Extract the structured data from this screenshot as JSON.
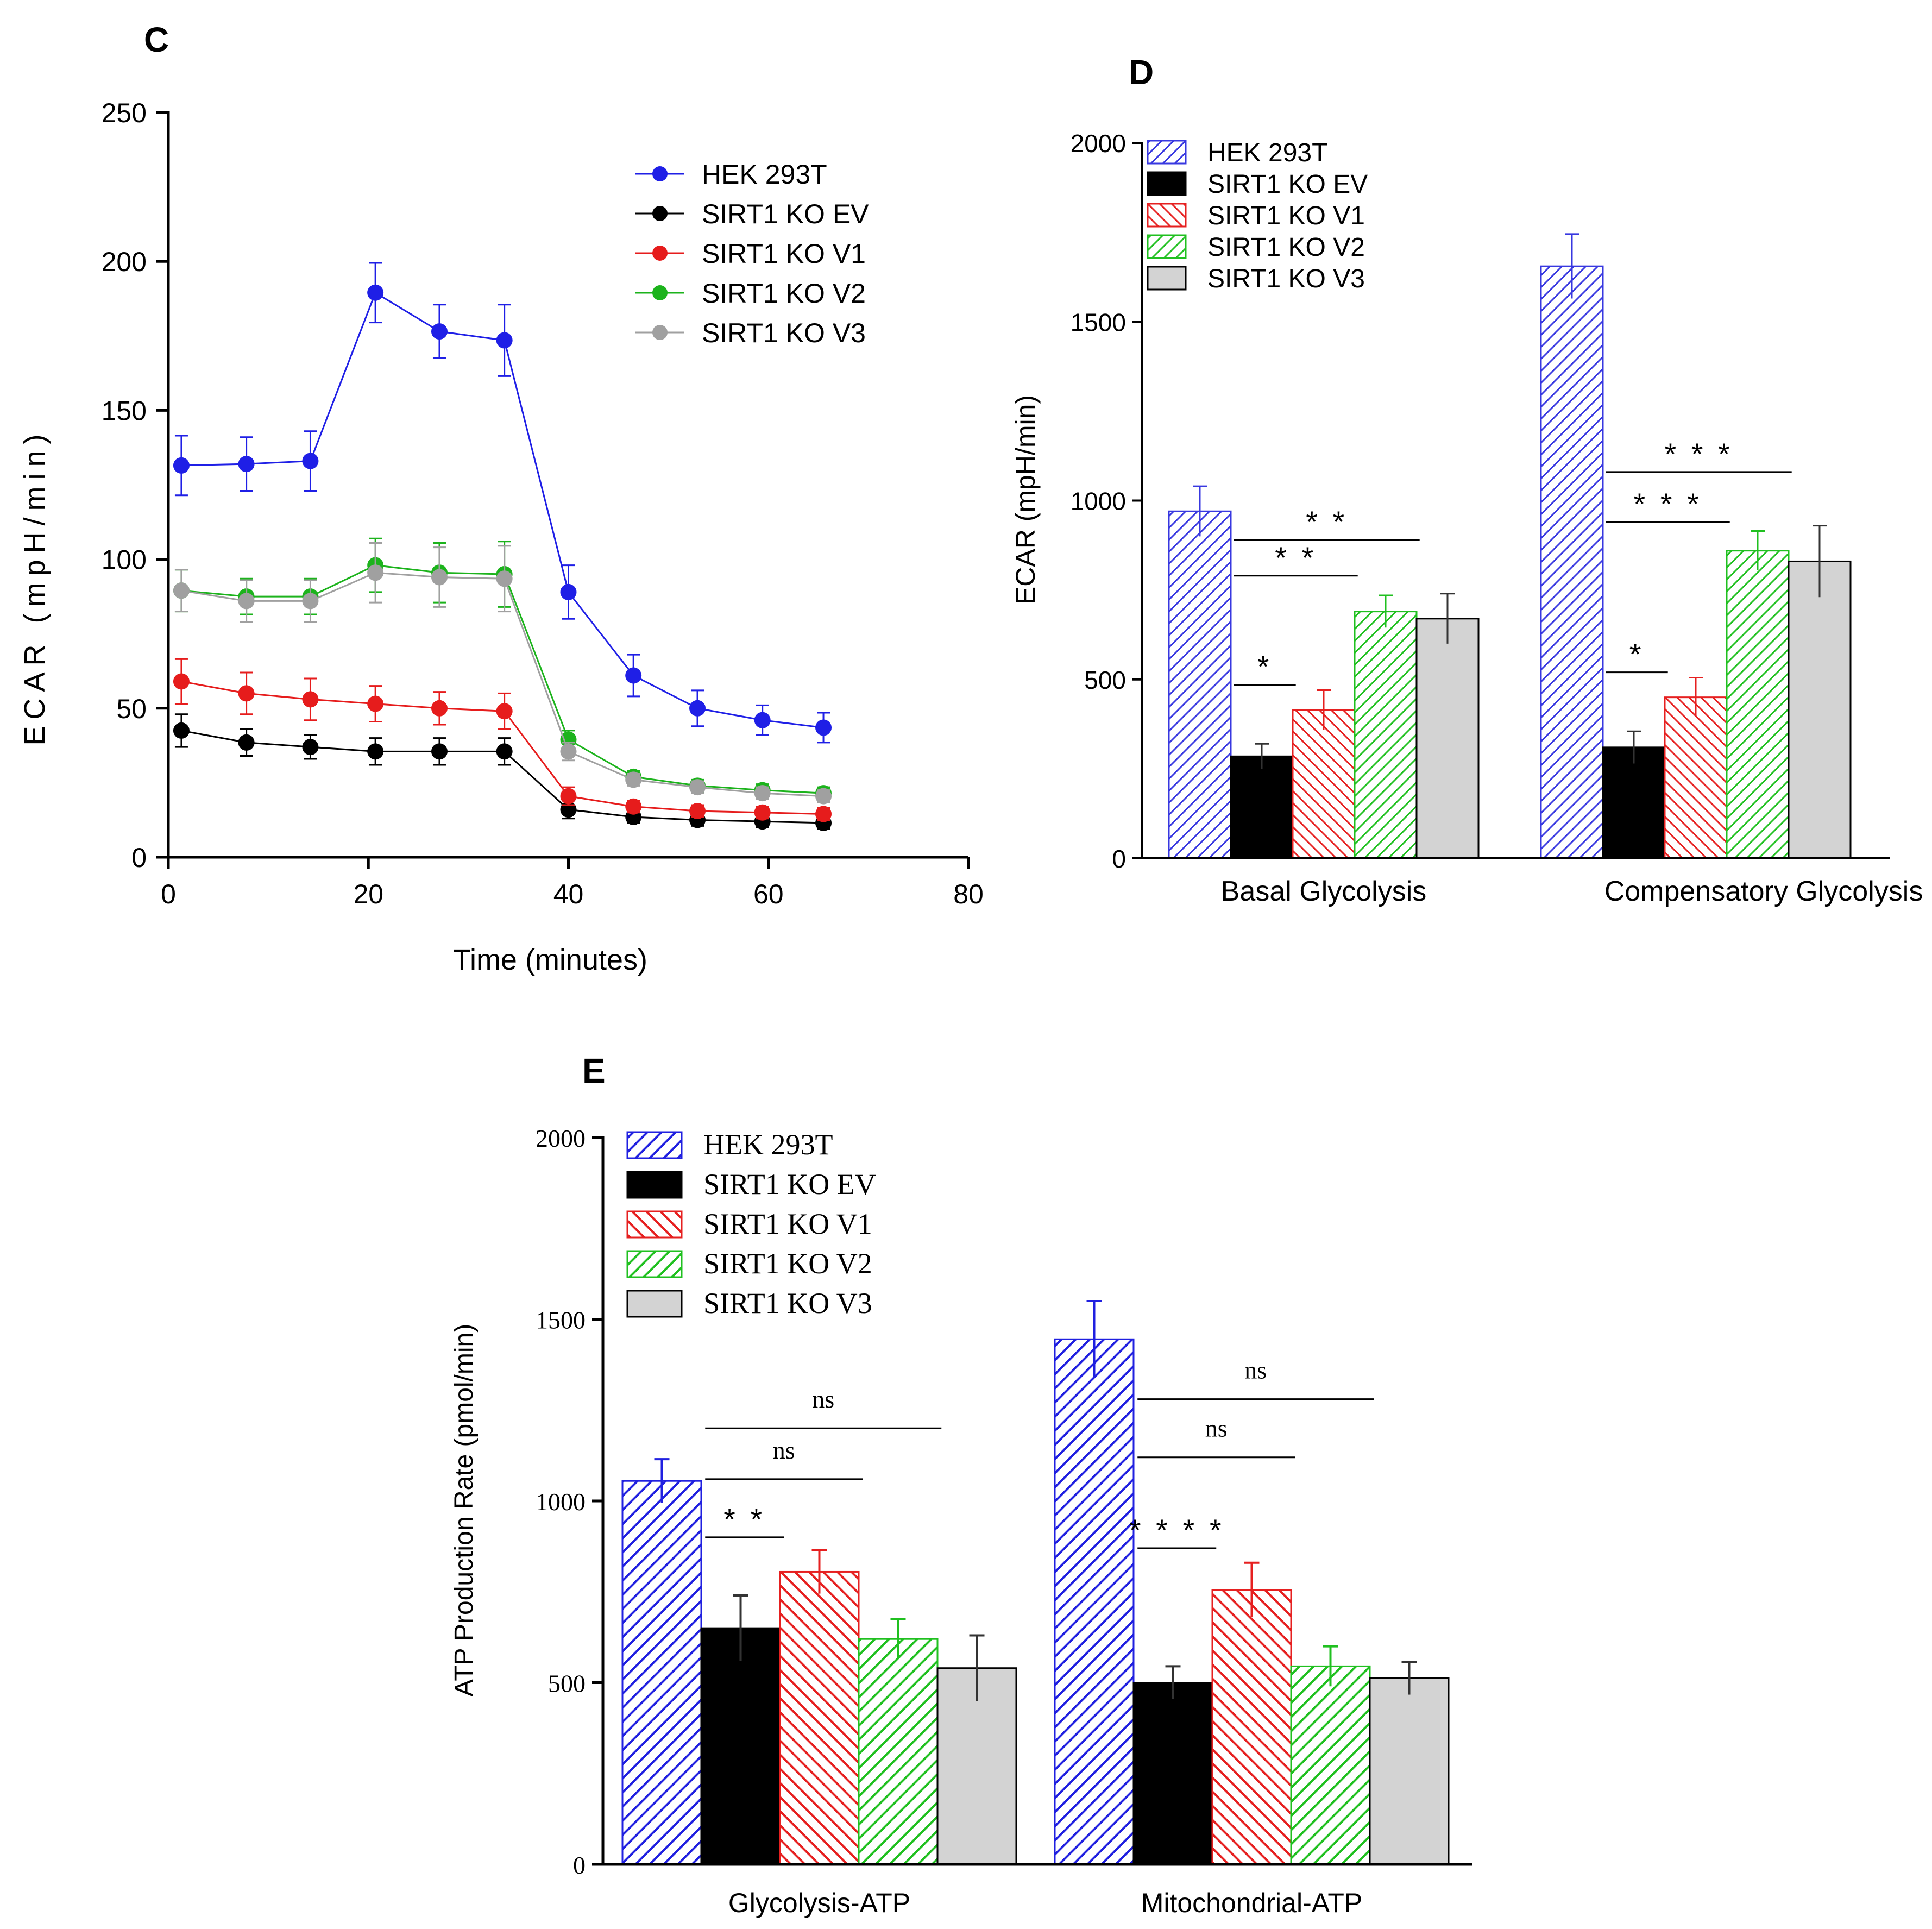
{
  "panels": {
    "c": {
      "label": "C"
    },
    "d": {
      "label": "D"
    },
    "e": {
      "label": "E"
    }
  },
  "chart_data": [
    {
      "id": "c",
      "type": "line",
      "title": "",
      "xlabel": "Time (minutes)",
      "ylabel": "ECAR (mpH/min)",
      "xlim": [
        0,
        80
      ],
      "ylim": [
        0,
        250
      ],
      "x_ticks": [
        "0",
        "20",
        "40",
        "60",
        "80"
      ],
      "y_ticks": [
        "0",
        "50",
        "100",
        "150",
        "200",
        "250"
      ],
      "legend": "top-right",
      "x": [
        1.3,
        7.8,
        14.2,
        20.7,
        27.1,
        33.6,
        40.0,
        46.5,
        52.9,
        59.4,
        65.5
      ],
      "series": [
        {
          "name": "HEK 293T",
          "color": "#1f1fe6",
          "values": [
            131.5,
            132,
            133,
            189.5,
            176.5,
            173.5,
            89,
            61,
            50,
            46,
            43.5
          ],
          "errors": [
            10,
            9,
            10,
            10,
            9,
            12,
            9,
            7,
            6,
            5,
            5
          ]
        },
        {
          "name": "SIRT1 KO EV",
          "color": "#000000",
          "values": [
            42.5,
            38.5,
            37,
            35.5,
            35.5,
            35.5,
            16,
            13.5,
            12.5,
            12,
            11.5
          ],
          "errors": [
            5.5,
            4.5,
            4,
            4.5,
            4.5,
            4.5,
            3,
            2,
            2,
            2,
            2
          ]
        },
        {
          "name": "SIRT1 KO V1",
          "color": "#e61c1c",
          "values": [
            59,
            55,
            53,
            51.5,
            50,
            49,
            20.5,
            17,
            15.5,
            15,
            14.5
          ],
          "errors": [
            7.5,
            7,
            7,
            6,
            5.5,
            6,
            3,
            2,
            2,
            2,
            2
          ]
        },
        {
          "name": "SIRT1 KO V2",
          "color": "#1cb31c",
          "values": [
            89.5,
            87.5,
            87.5,
            98,
            95.5,
            95,
            39.5,
            27,
            24,
            22.5,
            21.5
          ],
          "errors": [
            7,
            6,
            6,
            9,
            10,
            11,
            3,
            2,
            2,
            2,
            2
          ]
        },
        {
          "name": "SIRT1 KO V3",
          "color": "#a0a0a0",
          "values": [
            89.5,
            86,
            86,
            95.5,
            94,
            93.5,
            35.5,
            26,
            23.5,
            21.5,
            20.5
          ],
          "errors": [
            7,
            7,
            7,
            10,
            10,
            11,
            3,
            2,
            2,
            2,
            2
          ]
        }
      ]
    },
    {
      "id": "d",
      "type": "bar",
      "title": "",
      "xlabel": "",
      "ylabel": "ECAR (mpH/min)",
      "ylim": [
        0,
        2000
      ],
      "y_ticks": [
        "0",
        "500",
        "1000",
        "1500",
        "2000"
      ],
      "legend": "top-left",
      "categories": [
        "Basal Glycolysis",
        "Compensatory Glycolysis"
      ],
      "series": [
        {
          "name": "HEK 293T",
          "color": "#3838e0",
          "fill": "hatch",
          "values": [
            970,
            1655
          ],
          "errors": [
            70,
            90
          ]
        },
        {
          "name": "SIRT1 KO EV",
          "color": "#000000",
          "fill": "solid",
          "values": [
            285,
            310
          ],
          "errors": [
            35,
            45
          ]
        },
        {
          "name": "SIRT1 KO V1",
          "color": "#e62020",
          "fill": "hatch",
          "values": [
            415,
            450
          ],
          "errors": [
            55,
            55
          ]
        },
        {
          "name": "SIRT1 KO V2",
          "color": "#20c020",
          "fill": "hatch",
          "values": [
            690,
            860
          ],
          "errors": [
            45,
            55
          ]
        },
        {
          "name": "SIRT1 KO V3",
          "color": "#d3d3d3",
          "fill": "solid",
          "values": [
            670,
            830
          ],
          "errors": [
            70,
            100
          ]
        }
      ],
      "annotations": [
        {
          "category": 0,
          "from": 1,
          "to": 2,
          "text": "*"
        },
        {
          "category": 0,
          "from": 1,
          "to": 3,
          "text": "* *"
        },
        {
          "category": 0,
          "from": 1,
          "to": 4,
          "text": "* *"
        },
        {
          "category": 1,
          "from": 1,
          "to": 2,
          "text": "*"
        },
        {
          "category": 1,
          "from": 1,
          "to": 3,
          "text": "* * *"
        },
        {
          "category": 1,
          "from": 1,
          "to": 4,
          "text": "* * *"
        }
      ]
    },
    {
      "id": "e",
      "type": "bar",
      "title": "",
      "xlabel": "",
      "ylabel": "ATP Production Rate (pmol/min)",
      "ylim": [
        0,
        2000
      ],
      "y_ticks": [
        "0",
        "500",
        "1000",
        "1500",
        "2000"
      ],
      "legend": "top-left",
      "categories": [
        "Glycolysis-ATP",
        "Mitochondrial-ATP"
      ],
      "series": [
        {
          "name": "HEK 293T",
          "color": "#2020e0",
          "fill": "hatch",
          "values": [
            1055,
            1445
          ],
          "errors": [
            60,
            105
          ]
        },
        {
          "name": "SIRT1 KO EV",
          "color": "#000000",
          "fill": "solid",
          "values": [
            650,
            500
          ],
          "errors": [
            90,
            45
          ]
        },
        {
          "name": "SIRT1 KO V1",
          "color": "#e62020",
          "fill": "hatch",
          "values": [
            805,
            755
          ],
          "errors": [
            60,
            75
          ]
        },
        {
          "name": "SIRT1 KO V2",
          "color": "#20c020",
          "fill": "hatch",
          "values": [
            620,
            545
          ],
          "errors": [
            55,
            55
          ]
        },
        {
          "name": "SIRT1 KO V3",
          "color": "#d3d3d3",
          "fill": "solid",
          "values": [
            540,
            512
          ],
          "errors": [
            90,
            45
          ]
        }
      ],
      "annotations": [
        {
          "category": 0,
          "from": 1,
          "to": 2,
          "text": "* *"
        },
        {
          "category": 0,
          "from": 1,
          "to": 3,
          "text": "ns"
        },
        {
          "category": 0,
          "from": 1,
          "to": 4,
          "text": "ns"
        },
        {
          "category": 1,
          "from": 1,
          "to": 2,
          "text": "* * * *"
        },
        {
          "category": 1,
          "from": 1,
          "to": 3,
          "text": "ns"
        },
        {
          "category": 1,
          "from": 1,
          "to": 4,
          "text": "ns"
        }
      ]
    }
  ]
}
